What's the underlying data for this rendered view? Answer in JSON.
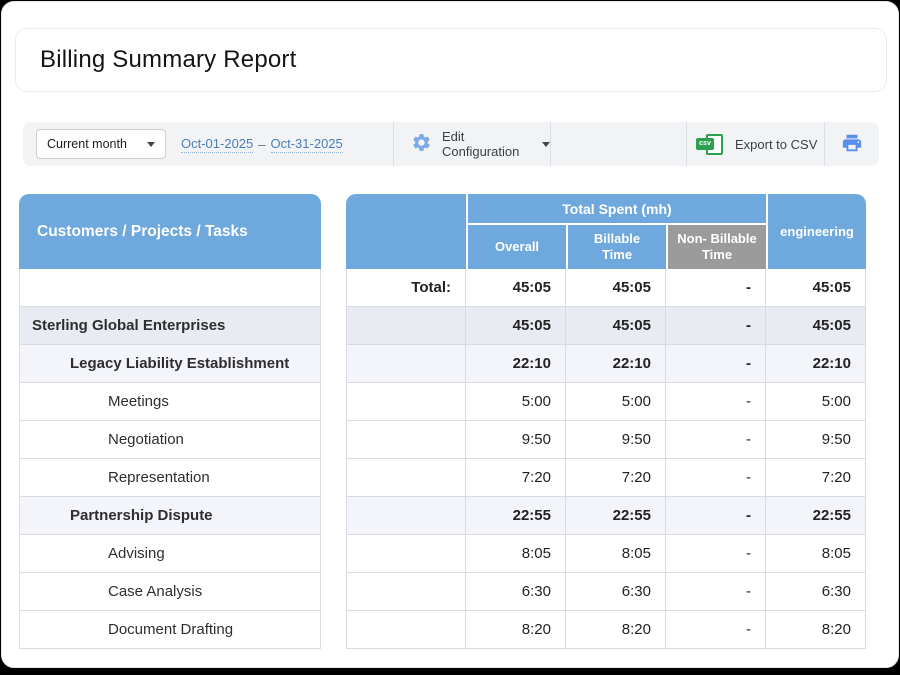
{
  "window": {
    "title": "Billing Summary Report"
  },
  "toolbar": {
    "period_select": {
      "value": "Current month",
      "icon": "caret-down"
    },
    "date_range": {
      "from": "Oct-01-2025",
      "separator": "–",
      "to": "Oct-31-2025"
    },
    "edit_configuration": {
      "label": "Edit Configuration",
      "icon": "gear",
      "caret": "caret-down"
    },
    "export_csv": {
      "label": "Export to CSV",
      "icon": "csv-file",
      "badge": "csv"
    },
    "print": {
      "icon": "printer"
    }
  },
  "table": {
    "left_header": "Customers / Projects / Tasks",
    "group_header": "Total Spent (mh)",
    "sub_columns": [
      "Overall",
      "Billable\nTime",
      "Non- Billable\nTime"
    ],
    "extra_column": "engineering",
    "rows": [
      {
        "label": "Total:",
        "level": "total",
        "values": [
          "45:05",
          "45:05",
          "-",
          "45:05"
        ]
      },
      {
        "label": "Sterling Global Enterprises",
        "level": "customer",
        "values": [
          "45:05",
          "45:05",
          "-",
          "45:05"
        ]
      },
      {
        "label": "Legacy Liability Establishment",
        "level": "project",
        "values": [
          "22:10",
          "22:10",
          "-",
          "22:10"
        ]
      },
      {
        "label": "Meetings",
        "level": "task",
        "values": [
          "5:00",
          "5:00",
          "-",
          "5:00"
        ]
      },
      {
        "label": "Negotiation",
        "level": "task",
        "values": [
          "9:50",
          "9:50",
          "-",
          "9:50"
        ]
      },
      {
        "label": "Representation",
        "level": "task",
        "values": [
          "7:20",
          "7:20",
          "-",
          "7:20"
        ]
      },
      {
        "label": "Partnership Dispute",
        "level": "project",
        "values": [
          "22:55",
          "22:55",
          "-",
          "22:55"
        ]
      },
      {
        "label": "Advising",
        "level": "task",
        "values": [
          "8:05",
          "8:05",
          "-",
          "8:05"
        ]
      },
      {
        "label": "Case Analysis",
        "level": "task",
        "values": [
          "6:30",
          "6:30",
          "-",
          "6:30"
        ]
      },
      {
        "label": "Document Drafting",
        "level": "task",
        "values": [
          "8:20",
          "8:20",
          "-",
          "8:20"
        ]
      }
    ]
  },
  "colors": {
    "header_blue": "#6FA8DC",
    "header_gray": "#9B9B9B",
    "link_blue": "#4A7EBB",
    "csv_green": "#2E9E4F",
    "printer_blue": "#5B8DEF",
    "gear_blue": "#7FA9E6",
    "customer_row_bg": "#E9EBF3",
    "project_row_bg": "#F4F5FA",
    "toolbar_bg": "#F1F3F4"
  }
}
